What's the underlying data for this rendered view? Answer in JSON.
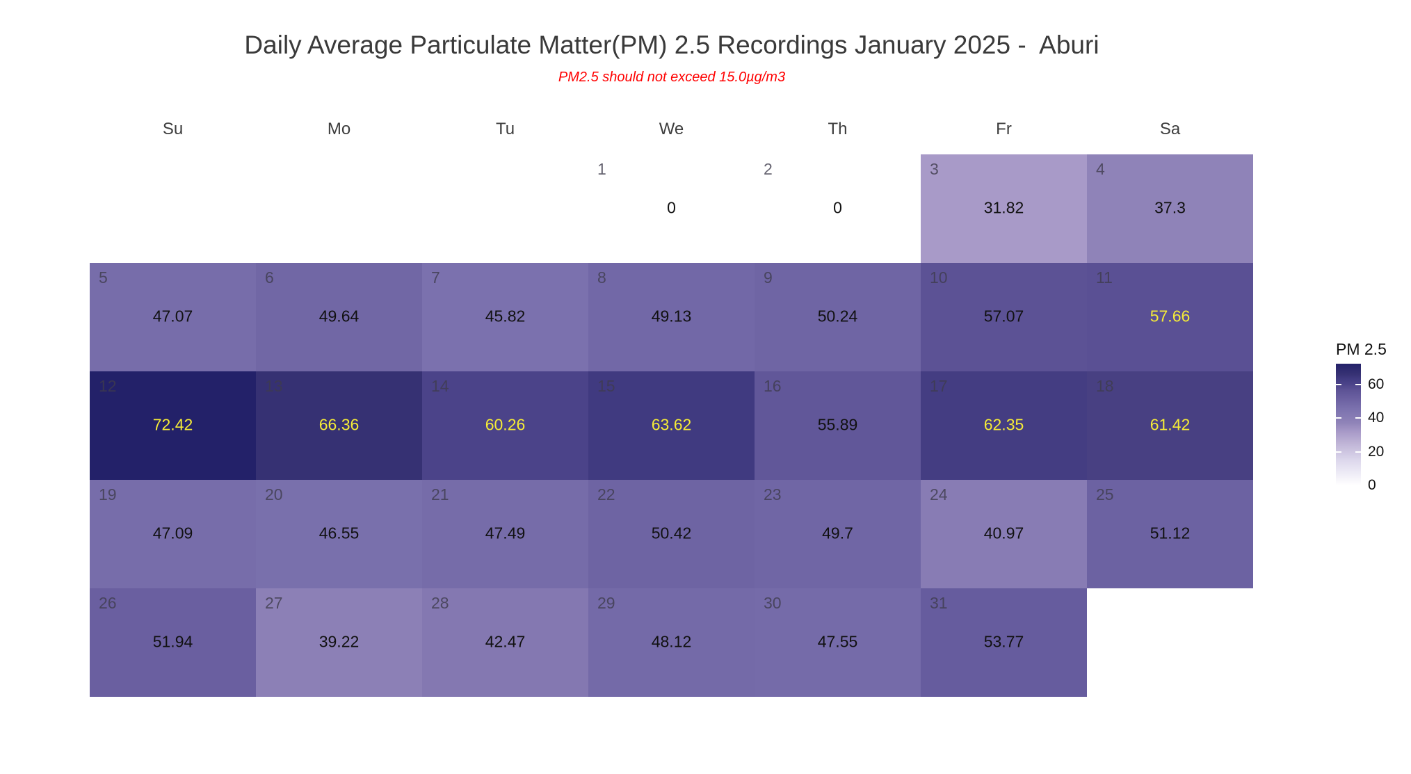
{
  "chart_data": {
    "type": "heatmap",
    "title": "Daily Average Particulate Matter(PM) 2.5 Recordings January 2025 -  Aburi",
    "subtitle_note": "PM2.5 should not exceed 15.0µg/m3",
    "month": "January 2025",
    "location": "Aburi",
    "unit": "µg/m3",
    "threshold_value": 15.0,
    "weekday_headers": [
      "Su",
      "Mo",
      "Tu",
      "We",
      "Th",
      "Fr",
      "Sa"
    ],
    "value_text_colors": {
      "default": "#111111",
      "high": "#F5EB37"
    },
    "days": [
      {
        "day": 1,
        "weekday": "We",
        "row": 0,
        "col": 3,
        "value": 0,
        "fill": "#FFFFFF",
        "text": "default"
      },
      {
        "day": 2,
        "weekday": "Th",
        "row": 0,
        "col": 4,
        "value": 0,
        "fill": "#FFFFFF",
        "text": "default"
      },
      {
        "day": 3,
        "weekday": "Fr",
        "row": 0,
        "col": 5,
        "value": 31.82,
        "fill": "#A89AC8",
        "text": "default"
      },
      {
        "day": 4,
        "weekday": "Sa",
        "row": 0,
        "col": 6,
        "value": 37.3,
        "fill": "#8F83B8",
        "text": "default"
      },
      {
        "day": 5,
        "weekday": "Su",
        "row": 1,
        "col": 0,
        "value": 47.07,
        "fill": "#776DAA",
        "text": "default"
      },
      {
        "day": 6,
        "weekday": "Mo",
        "row": 1,
        "col": 1,
        "value": 49.64,
        "fill": "#7167A5",
        "text": "default"
      },
      {
        "day": 7,
        "weekday": "Tu",
        "row": 1,
        "col": 2,
        "value": 45.82,
        "fill": "#7B71AE",
        "text": "default"
      },
      {
        "day": 8,
        "weekday": "We",
        "row": 1,
        "col": 3,
        "value": 49.13,
        "fill": "#7268A7",
        "text": "default"
      },
      {
        "day": 9,
        "weekday": "Th",
        "row": 1,
        "col": 4,
        "value": 50.24,
        "fill": "#6F65A4",
        "text": "default"
      },
      {
        "day": 10,
        "weekday": "Fr",
        "row": 1,
        "col": 5,
        "value": 57.07,
        "fill": "#5C5295",
        "text": "default"
      },
      {
        "day": 11,
        "weekday": "Sa",
        "row": 1,
        "col": 6,
        "value": 57.66,
        "fill": "#5A5094",
        "text": "high"
      },
      {
        "day": 12,
        "weekday": "Su",
        "row": 2,
        "col": 0,
        "value": 72.42,
        "fill": "#232169",
        "text": "high"
      },
      {
        "day": 13,
        "weekday": "Mo",
        "row": 2,
        "col": 1,
        "value": 66.36,
        "fill": "#363173",
        "text": "high"
      },
      {
        "day": 14,
        "weekday": "Tu",
        "row": 2,
        "col": 2,
        "value": 60.26,
        "fill": "#4B4389",
        "text": "high"
      },
      {
        "day": 15,
        "weekday": "We",
        "row": 2,
        "col": 3,
        "value": 63.62,
        "fill": "#403A80",
        "text": "high"
      },
      {
        "day": 16,
        "weekday": "Th",
        "row": 2,
        "col": 4,
        "value": 55.89,
        "fill": "#615799",
        "text": "default"
      },
      {
        "day": 17,
        "weekday": "Fr",
        "row": 2,
        "col": 5,
        "value": 62.35,
        "fill": "#443D82",
        "text": "high"
      },
      {
        "day": 18,
        "weekday": "Sa",
        "row": 2,
        "col": 6,
        "value": 61.42,
        "fill": "#484082",
        "text": "high"
      },
      {
        "day": 19,
        "weekday": "Su",
        "row": 3,
        "col": 0,
        "value": 47.09,
        "fill": "#776DAA",
        "text": "default"
      },
      {
        "day": 20,
        "weekday": "Mo",
        "row": 3,
        "col": 1,
        "value": 46.55,
        "fill": "#7970AC",
        "text": "default"
      },
      {
        "day": 21,
        "weekday": "Tu",
        "row": 3,
        "col": 2,
        "value": 47.49,
        "fill": "#766CA9",
        "text": "default"
      },
      {
        "day": 22,
        "weekday": "We",
        "row": 3,
        "col": 3,
        "value": 50.42,
        "fill": "#6E64A3",
        "text": "default"
      },
      {
        "day": 23,
        "weekday": "Th",
        "row": 3,
        "col": 4,
        "value": 49.7,
        "fill": "#7066A5",
        "text": "default"
      },
      {
        "day": 24,
        "weekday": "Fr",
        "row": 3,
        "col": 5,
        "value": 40.97,
        "fill": "#887CB4",
        "text": "default"
      },
      {
        "day": 25,
        "weekday": "Sa",
        "row": 3,
        "col": 6,
        "value": 51.12,
        "fill": "#6C62A2",
        "text": "default"
      },
      {
        "day": 26,
        "weekday": "Su",
        "row": 4,
        "col": 0,
        "value": 51.94,
        "fill": "#6A5FA0",
        "text": "default"
      },
      {
        "day": 27,
        "weekday": "Mo",
        "row": 4,
        "col": 1,
        "value": 39.22,
        "fill": "#8C80B6",
        "text": "default"
      },
      {
        "day": 28,
        "weekday": "Tu",
        "row": 4,
        "col": 2,
        "value": 42.47,
        "fill": "#8478B1",
        "text": "default"
      },
      {
        "day": 29,
        "weekday": "We",
        "row": 4,
        "col": 3,
        "value": 48.12,
        "fill": "#746AA8",
        "text": "default"
      },
      {
        "day": 30,
        "weekday": "Th",
        "row": 4,
        "col": 4,
        "value": 47.55,
        "fill": "#756BA9",
        "text": "default"
      },
      {
        "day": 31,
        "weekday": "Fr",
        "row": 4,
        "col": 5,
        "value": 53.77,
        "fill": "#665C9E",
        "text": "default"
      }
    ],
    "legend": {
      "title": "PM 2.5",
      "max": 72.42,
      "min": 0,
      "tick_values": [
        60,
        40,
        20,
        0
      ],
      "tick_dash_values": [
        60,
        40,
        20
      ],
      "gradient_stops": [
        [
          0,
          "#FFFFFF"
        ],
        [
          15,
          "#DCD7EC"
        ],
        [
          25,
          "#BFB4D6"
        ],
        [
          31.82,
          "#A89AC8"
        ],
        [
          37.3,
          "#8F83B8"
        ],
        [
          45,
          "#7D73AF"
        ],
        [
          52,
          "#6A5FA0"
        ],
        [
          57,
          "#5C5295"
        ],
        [
          60.26,
          "#4B4389"
        ],
        [
          63.62,
          "#403A80"
        ],
        [
          66.36,
          "#363173"
        ],
        [
          72.42,
          "#232169"
        ]
      ]
    }
  }
}
